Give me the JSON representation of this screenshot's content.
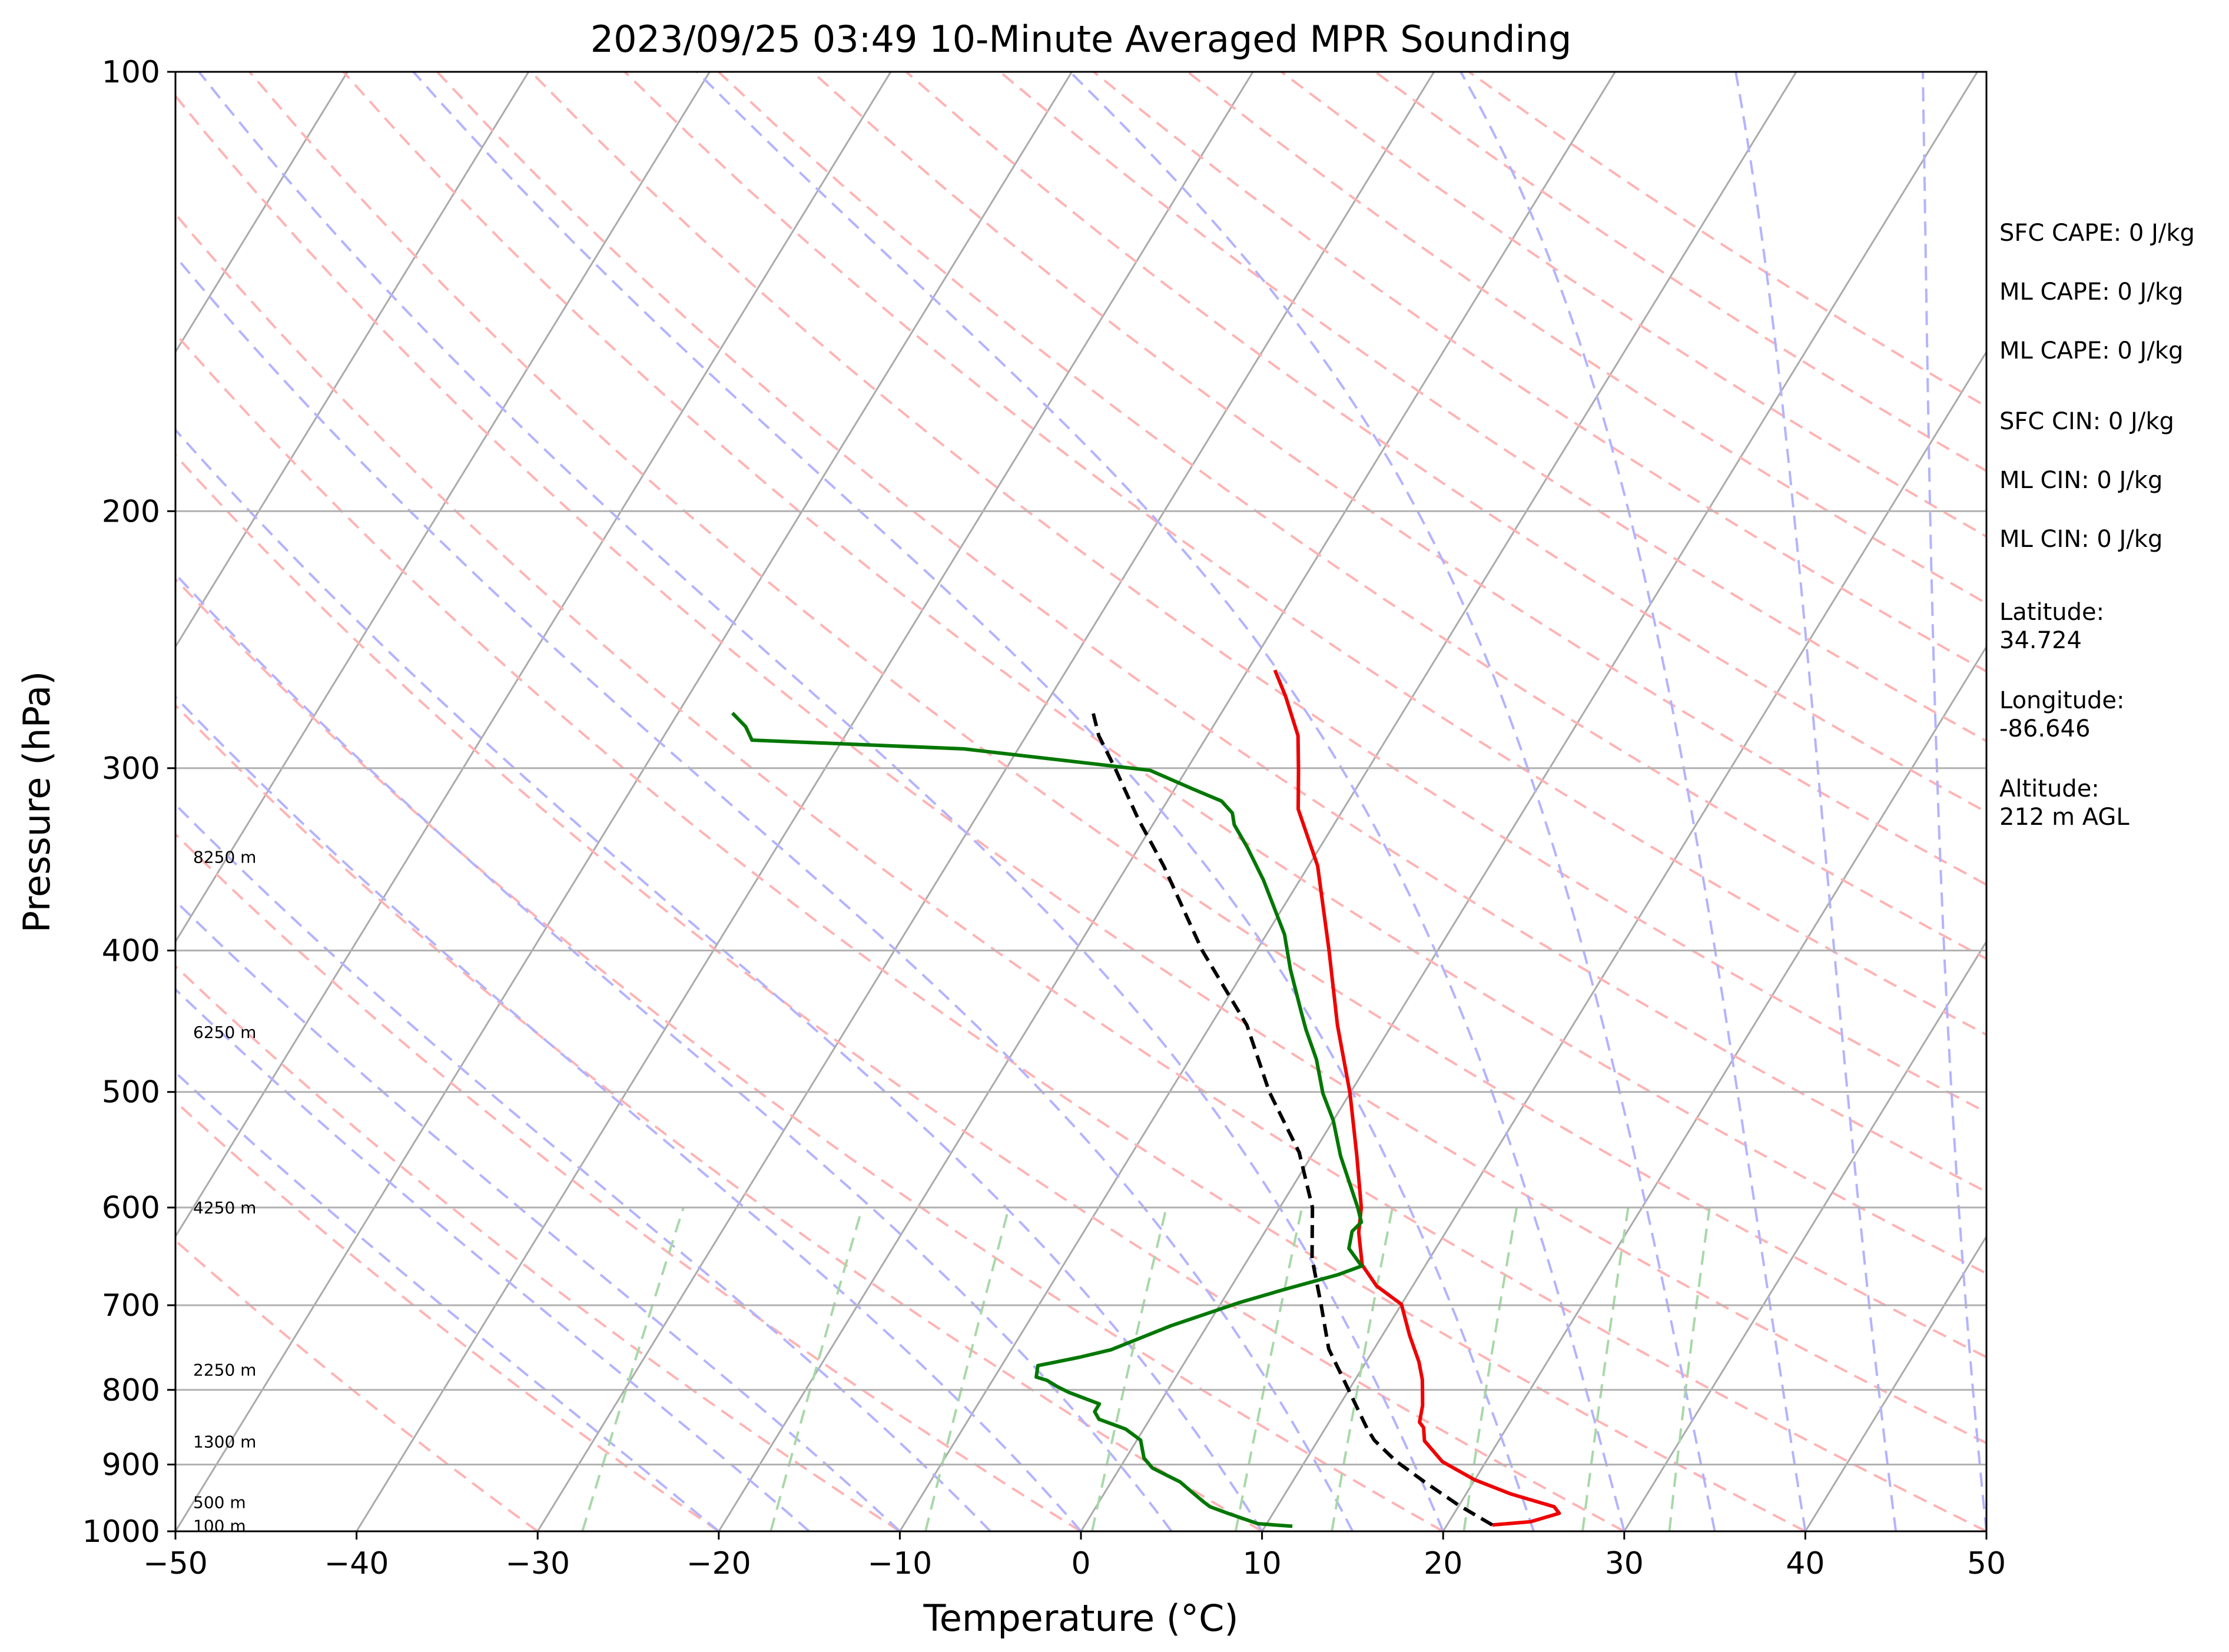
{
  "chart_data": {
    "type": "line",
    "title": "2023/09/25 03:49 10-Minute Averaged MPR Sounding",
    "xlabel": "Temperature (°C)",
    "ylabel": "Pressure (hPa)",
    "xlim": [
      -50,
      50
    ],
    "ylim": [
      1000,
      100
    ],
    "y_scale": "log",
    "skew": "skew-T",
    "x_ticks": [
      "−50",
      "−40",
      "−30",
      "−20",
      "−10",
      "0",
      "10",
      "20",
      "30",
      "40",
      "50"
    ],
    "y_ticks": [
      "100",
      "200",
      "300",
      "400",
      "500",
      "600",
      "700",
      "800",
      "900",
      "1000"
    ],
    "grid": true,
    "background_lines": {
      "isotherms_color": "#aaaaaa",
      "dry_adiabats_color": "#ffb3b3",
      "moist_adiabats_color": "#b3b3ff",
      "mixing_ratio_color": "#a8d8a8"
    },
    "height_labels": [
      "8250 m",
      "6250 m",
      "4250 m",
      "2250 m",
      "1300 m",
      "500 m",
      "100 m"
    ],
    "series": [
      {
        "color": "#ee0000",
        "points": [
          [
            22.5,
            990
          ],
          [
            24.5,
            985
          ],
          [
            25.8,
            972
          ],
          [
            25.3,
            962
          ],
          [
            22.5,
            943
          ],
          [
            20.0,
            922
          ],
          [
            17.6,
            896
          ],
          [
            15.9,
            867
          ],
          [
            15.4,
            849
          ],
          [
            15.0,
            842
          ],
          [
            14.6,
            820
          ],
          [
            14.2,
            805
          ],
          [
            13.7,
            787
          ],
          [
            12.9,
            765
          ],
          [
            11.5,
            734
          ],
          [
            10.0,
            699
          ],
          [
            8.0,
            679
          ],
          [
            6.5,
            657
          ],
          [
            5.2,
            624
          ],
          [
            4.5,
            600
          ],
          [
            2.5,
            553
          ],
          [
            0.0,
            501
          ],
          [
            -3.0,
            450
          ],
          [
            -6.0,
            400
          ],
          [
            -9.5,
            350
          ],
          [
            -12.5,
            320
          ],
          [
            -13.8,
            301
          ],
          [
            -15.0,
            285
          ],
          [
            -17.0,
            268
          ],
          [
            -18.5,
            257
          ]
        ]
      },
      {
        "color": "#007700",
        "points": [
          [
            11.5,
            992
          ],
          [
            9.5,
            988
          ],
          [
            8.5,
            980
          ],
          [
            7.5,
            972
          ],
          [
            6.3,
            962
          ],
          [
            5.8,
            955
          ],
          [
            4.8,
            940
          ],
          [
            3.8,
            925
          ],
          [
            2.5,
            912
          ],
          [
            1.8,
            905
          ],
          [
            1.0,
            891
          ],
          [
            0.2,
            866
          ],
          [
            -1.0,
            851
          ],
          [
            -2.8,
            838
          ],
          [
            -3.3,
            828
          ],
          [
            -3.3,
            818
          ],
          [
            -5.4,
            803
          ],
          [
            -6.2,
            796
          ],
          [
            -7.0,
            788
          ],
          [
            -7.7,
            784
          ],
          [
            -8.0,
            770
          ],
          [
            -6.0,
            760
          ],
          [
            -4.5,
            751
          ],
          [
            -2.0,
            723
          ],
          [
            1.0,
            697
          ],
          [
            3.0,
            683
          ],
          [
            5.5,
            667
          ],
          [
            6.5,
            658
          ],
          [
            5.2,
            640
          ],
          [
            4.8,
            623
          ],
          [
            5.0,
            614
          ],
          [
            4.3,
            600
          ],
          [
            1.6,
            553
          ],
          [
            0.0,
            523
          ],
          [
            -1.5,
            501
          ],
          [
            -3.0,
            475
          ],
          [
            -4.6,
            453
          ],
          [
            -5.5,
            440
          ],
          [
            -7.5,
            412
          ],
          [
            -9.0,
            390
          ],
          [
            -12.0,
            358
          ],
          [
            -14.0,
            340
          ],
          [
            -15.5,
            328
          ],
          [
            -16.0,
            322
          ],
          [
            -17.0,
            316
          ],
          [
            -19.0,
            310
          ],
          [
            -22.0,
            301
          ],
          [
            -33.0,
            291
          ],
          [
            -45.0,
            287
          ],
          [
            -45.8,
            281
          ],
          [
            -47.0,
            275
          ]
        ]
      },
      {
        "color": "#000000",
        "dash": true,
        "points": [
          [
            22.5,
            990
          ],
          [
            20.0,
            960
          ],
          [
            17.3,
            925
          ],
          [
            15.0,
            895
          ],
          [
            13.1,
            866
          ],
          [
            12.3,
            850
          ],
          [
            9.5,
            790
          ],
          [
            7.5,
            750
          ],
          [
            5.6,
            700
          ],
          [
            3.5,
            650
          ],
          [
            1.8,
            600
          ],
          [
            -0.8,
            550
          ],
          [
            -4.5,
            500
          ],
          [
            -8.0,
            450
          ],
          [
            -13.0,
            400
          ],
          [
            -18.0,
            350
          ],
          [
            -21.0,
            325
          ],
          [
            -24.0,
            300
          ],
          [
            -26.0,
            285
          ],
          [
            -27.3,
            273
          ]
        ]
      }
    ]
  },
  "side_panel": {
    "sfc_cape": "SFC CAPE: 0 J/kg",
    "ml_cape_1": "ML CAPE: 0 J/kg",
    "ml_cape_2": "ML CAPE: 0 J/kg",
    "sfc_cin": "SFC CIN: 0 J/kg",
    "ml_cin_1": "ML CIN: 0 J/kg",
    "ml_cin_2": "ML CIN: 0 J/kg",
    "latitude": "Latitude:\n34.724",
    "longitude": "Longitude:\n-86.646",
    "altitude": "Altitude:\n212 m AGL"
  }
}
